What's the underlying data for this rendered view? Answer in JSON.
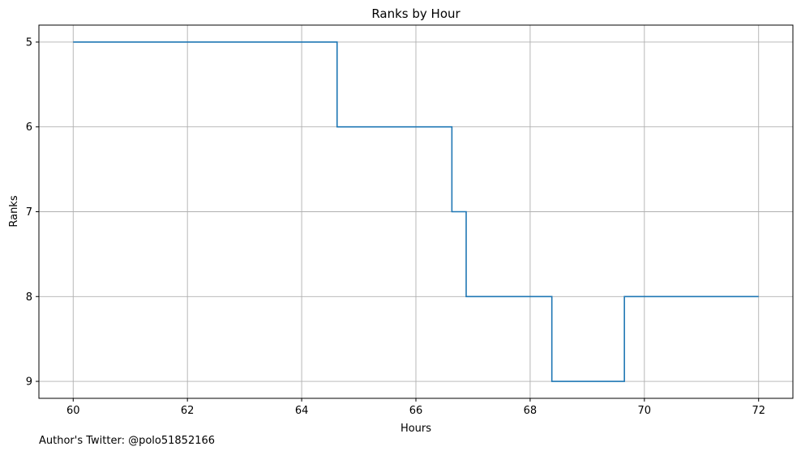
{
  "chart_data": {
    "type": "line",
    "drawstyle": "steps-post",
    "title": "Ranks by Hour",
    "xlabel": "Hours",
    "ylabel": "Ranks",
    "xlim": [
      59.4,
      72.6
    ],
    "ylim": [
      9.2,
      4.8
    ],
    "y_inverted": true,
    "xticks": [
      60,
      62,
      64,
      66,
      68,
      70,
      72
    ],
    "yticks": [
      5,
      6,
      7,
      8,
      9
    ],
    "grid": true,
    "series": [
      {
        "x": [
          60,
          64.62,
          66.63,
          66.88,
          68.38,
          69.65,
          72
        ],
        "y": [
          5,
          6,
          7,
          8,
          9,
          8,
          8
        ],
        "color": "#1f77b4"
      }
    ]
  },
  "footer": {
    "note": "Author's Twitter: @polo51852166"
  }
}
